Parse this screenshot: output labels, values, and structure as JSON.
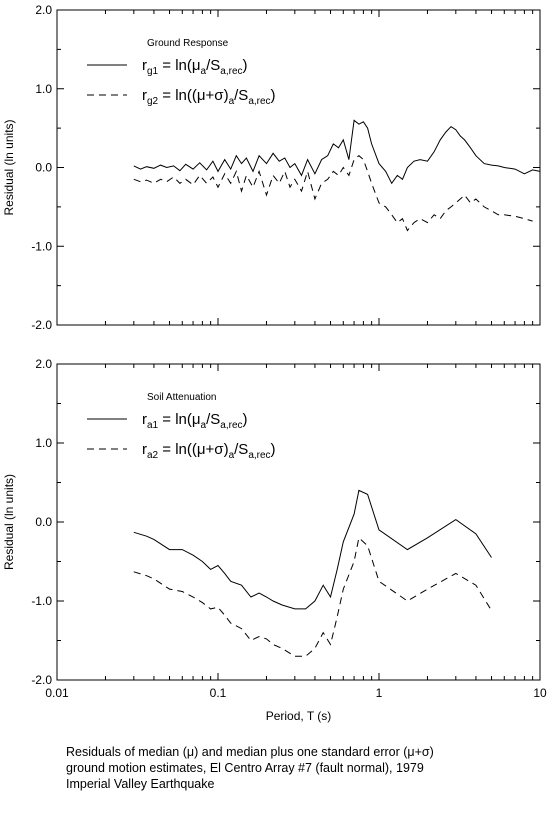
{
  "chart_data": [
    {
      "type": "line",
      "title": "",
      "legend_title": "Ground Response",
      "legend_position": "top-left",
      "ylabel": "Residual (ln units)",
      "xlabel": "",
      "xscale": "log",
      "xlim": [
        0.01,
        10
      ],
      "ylim": [
        -2.0,
        2.0
      ],
      "yticks": [
        "2.0",
        "1.0",
        "0.0",
        "-1.0",
        "-2.0"
      ],
      "grid": false,
      "series": [
        {
          "name": "r_g1 = ln(μa/Sa,rec)",
          "legend_label": {
            "base": "r",
            "sub": "g1",
            "rhs": " = ln(",
            "mu": "μ",
            "mu_sub": "a",
            "div": "/S",
            "div_sub": "a,rec",
            "close": ")"
          },
          "style": "solid",
          "x": [
            0.03,
            0.033,
            0.036,
            0.04,
            0.044,
            0.048,
            0.053,
            0.058,
            0.063,
            0.07,
            0.077,
            0.085,
            0.093,
            0.1,
            0.11,
            0.12,
            0.13,
            0.14,
            0.15,
            0.165,
            0.18,
            0.2,
            0.22,
            0.24,
            0.26,
            0.28,
            0.3,
            0.33,
            0.36,
            0.4,
            0.44,
            0.48,
            0.52,
            0.56,
            0.6,
            0.65,
            0.7,
            0.75,
            0.8,
            0.85,
            0.9,
            1.0,
            1.1,
            1.2,
            1.3,
            1.4,
            1.5,
            1.65,
            1.8,
            2.0,
            2.2,
            2.4,
            2.6,
            2.8,
            3.0,
            3.2,
            3.4,
            3.7,
            4.0,
            4.5,
            5.0,
            5.5,
            6.0,
            7.0,
            8.0,
            9.0,
            10.0
          ],
          "y": [
            0.02,
            -0.02,
            0.01,
            -0.01,
            0.03,
            0.0,
            0.02,
            -0.04,
            0.04,
            -0.02,
            0.06,
            -0.03,
            0.08,
            -0.05,
            0.1,
            -0.02,
            0.15,
            0.05,
            0.12,
            -0.05,
            0.15,
            0.05,
            0.18,
            0.08,
            0.12,
            0.0,
            0.05,
            -0.1,
            0.1,
            -0.08,
            0.1,
            0.15,
            0.3,
            0.25,
            0.35,
            0.1,
            0.6,
            0.55,
            0.58,
            0.5,
            0.3,
            0.05,
            -0.05,
            -0.2,
            -0.1,
            -0.15,
            0.0,
            0.08,
            0.1,
            0.08,
            0.2,
            0.35,
            0.45,
            0.52,
            0.48,
            0.4,
            0.35,
            0.25,
            0.15,
            0.05,
            0.03,
            0.02,
            0.0,
            -0.02,
            -0.08,
            -0.03,
            -0.05
          ]
        },
        {
          "name": "r_g2 = ln((μ+σ)a/Sa,rec)",
          "legend_label": {
            "base": "r",
            "sub": "g2",
            "rhs": " = ln((",
            "mu": "μ+σ",
            "mid": ")",
            "mu_sub": "a",
            "div": "/S",
            "div_sub": "a,rec",
            "close": ")"
          },
          "style": "dashed",
          "x": [
            0.03,
            0.033,
            0.036,
            0.04,
            0.044,
            0.048,
            0.053,
            0.058,
            0.063,
            0.07,
            0.077,
            0.085,
            0.093,
            0.1,
            0.11,
            0.12,
            0.13,
            0.14,
            0.15,
            0.165,
            0.18,
            0.2,
            0.22,
            0.24,
            0.26,
            0.28,
            0.3,
            0.33,
            0.36,
            0.4,
            0.44,
            0.48,
            0.52,
            0.56,
            0.6,
            0.65,
            0.7,
            0.75,
            0.8,
            0.85,
            0.9,
            1.0,
            1.1,
            1.2,
            1.3,
            1.4,
            1.5,
            1.65,
            1.8,
            2.0,
            2.2,
            2.4,
            2.6,
            2.8,
            3.0,
            3.2,
            3.4,
            3.7,
            4.0,
            4.5,
            5.0,
            5.5,
            6.0,
            7.0,
            8.0,
            9.0
          ],
          "y": [
            -0.15,
            -0.18,
            -0.16,
            -0.2,
            -0.15,
            -0.18,
            -0.12,
            -0.2,
            -0.15,
            -0.22,
            -0.1,
            -0.2,
            -0.12,
            -0.25,
            -0.08,
            -0.2,
            -0.05,
            -0.3,
            -0.1,
            -0.25,
            -0.05,
            -0.35,
            -0.1,
            -0.2,
            -0.05,
            -0.25,
            -0.15,
            -0.3,
            -0.05,
            -0.4,
            -0.2,
            -0.15,
            -0.05,
            -0.1,
            0.0,
            -0.1,
            0.1,
            0.15,
            0.1,
            -0.05,
            -0.2,
            -0.45,
            -0.5,
            -0.6,
            -0.7,
            -0.65,
            -0.8,
            -0.7,
            -0.65,
            -0.7,
            -0.6,
            -0.65,
            -0.55,
            -0.5,
            -0.45,
            -0.4,
            -0.35,
            -0.45,
            -0.4,
            -0.5,
            -0.55,
            -0.6,
            -0.6,
            -0.62,
            -0.65,
            -0.68
          ]
        }
      ]
    },
    {
      "type": "line",
      "title": "",
      "legend_title": "Soil Attenuation",
      "legend_position": "top-left",
      "ylabel": "Residual (ln units)",
      "xlabel": "Period, T (s)",
      "xscale": "log",
      "xlim": [
        0.01,
        10
      ],
      "ylim": [
        -2.0,
        2.0
      ],
      "xticks": [
        "0.01",
        "0.1",
        "1",
        "10"
      ],
      "yticks": [
        "2.0",
        "1.0",
        "0.0",
        "-1.0",
        "-2.0"
      ],
      "grid": false,
      "series": [
        {
          "name": "r_a1 = ln(μa/Sa,rec)",
          "legend_label": {
            "base": "r",
            "sub": "a1",
            "rhs": " = ln(",
            "mu": "μ",
            "mu_sub": "a",
            "div": "/S",
            "div_sub": "a,rec",
            "close": ")"
          },
          "style": "solid",
          "x": [
            0.03,
            0.036,
            0.04,
            0.05,
            0.06,
            0.07,
            0.08,
            0.09,
            0.1,
            0.11,
            0.12,
            0.14,
            0.16,
            0.18,
            0.2,
            0.22,
            0.25,
            0.3,
            0.35,
            0.4,
            0.45,
            0.5,
            0.55,
            0.6,
            0.7,
            0.75,
            0.85,
            1.0,
            1.5,
            2.0,
            3.0,
            4.0,
            5.0
          ],
          "y": [
            -0.13,
            -0.18,
            -0.22,
            -0.35,
            -0.35,
            -0.42,
            -0.5,
            -0.6,
            -0.55,
            -0.65,
            -0.75,
            -0.8,
            -0.95,
            -0.9,
            -0.95,
            -1.0,
            -1.05,
            -1.1,
            -1.1,
            -1.0,
            -0.8,
            -0.95,
            -0.6,
            -0.25,
            0.1,
            0.4,
            0.35,
            -0.1,
            -0.35,
            -0.2,
            0.03,
            -0.15,
            -0.45
          ]
        },
        {
          "name": "r_a2 = ln((μ+σ)a/Sa,rec)",
          "legend_label": {
            "base": "r",
            "sub": "a2",
            "rhs": " = ln((",
            "mu": "μ+σ",
            "mid": ")",
            "mu_sub": "a",
            "div": "/S",
            "div_sub": "a,rec",
            "close": ")"
          },
          "style": "dashed",
          "x": [
            0.03,
            0.036,
            0.04,
            0.05,
            0.06,
            0.07,
            0.08,
            0.09,
            0.1,
            0.11,
            0.12,
            0.14,
            0.16,
            0.18,
            0.2,
            0.22,
            0.25,
            0.3,
            0.35,
            0.4,
            0.45,
            0.5,
            0.55,
            0.6,
            0.7,
            0.75,
            0.85,
            1.0,
            1.5,
            2.0,
            3.0,
            4.0,
            5.0
          ],
          "y": [
            -0.63,
            -0.68,
            -0.72,
            -0.85,
            -0.88,
            -0.95,
            -1.02,
            -1.1,
            -1.08,
            -1.18,
            -1.28,
            -1.35,
            -1.5,
            -1.45,
            -1.48,
            -1.55,
            -1.6,
            -1.7,
            -1.7,
            -1.6,
            -1.4,
            -1.55,
            -1.2,
            -0.85,
            -0.5,
            -0.2,
            -0.3,
            -0.75,
            -1.0,
            -0.85,
            -0.65,
            -0.8,
            -1.12
          ]
        }
      ]
    }
  ],
  "caption": {
    "line1_pre": "Residuals of median (",
    "line1_mu": "μ",
    "line1_mid": ") and median plus one standard error (",
    "line1_musig": "μ+σ",
    "line1_post": ")",
    "line2": "ground motion estimates, El Centro Array #7 (fault normal), 1979",
    "line3": "Imperial Valley Earthquake"
  },
  "colors": {
    "line": "#000000",
    "background": "#ffffff"
  }
}
